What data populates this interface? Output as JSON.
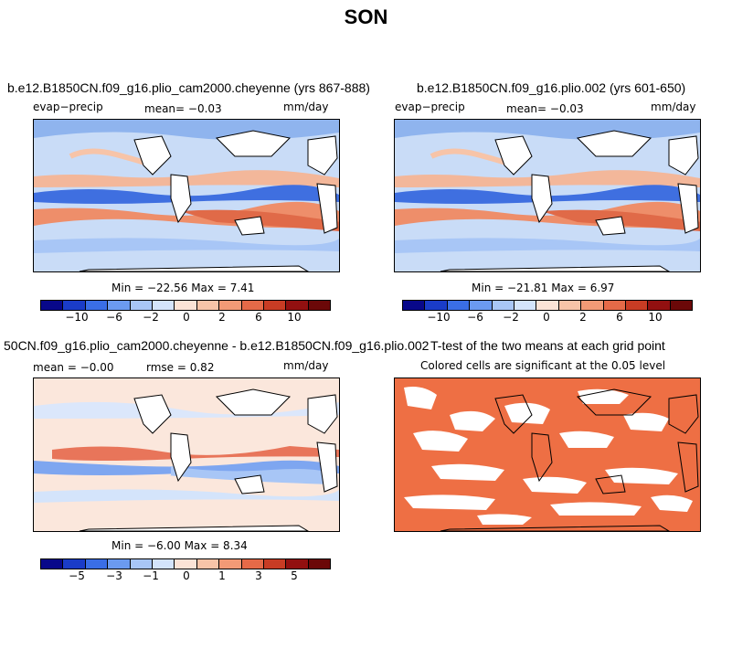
{
  "title": "SON",
  "palette": [
    "#08088a",
    "#1a3cc8",
    "#3a6ee6",
    "#6b9af0",
    "#a8c6f6",
    "#d4e4fb",
    "#fbe3d6",
    "#f7c4a8",
    "#f29a76",
    "#e56a48",
    "#c83c24",
    "#921010",
    "#6b0808"
  ],
  "panels": [
    {
      "title": "b.e12.B1850CN.f09_g16.plio_cam2000.cheyenne (yrs 867-888)",
      "variable": "evap−precip",
      "mean": "mean=  −0.03",
      "units": "mm/day",
      "stats": "Min = −22.56  Max =    7.41",
      "colorbar_ticks": [
        "−10",
        "−6",
        "−2",
        "0",
        "2",
        "6",
        "10"
      ]
    },
    {
      "title": "b.e12.B1850CN.f09_g16.plio.002 (yrs 601-650)",
      "variable": "evap−precip",
      "mean": "mean=  −0.03",
      "units": "mm/day",
      "stats": "Min = −21.81  Max =    6.97",
      "colorbar_ticks": [
        "−10",
        "−6",
        "−2",
        "0",
        "2",
        "6",
        "10"
      ]
    },
    {
      "title": "50CN.f09_g16.plio_cam2000.cheyenne - b.e12.B1850CN.f09_g16.plio.002",
      "variable": "mean =  −0.00",
      "mean": "rmse =   0.82",
      "units": "mm/day",
      "stats": "Min =  −6.00  Max =   8.34",
      "colorbar_ticks": [
        "−5",
        "−3",
        "−1",
        "0",
        "1",
        "3",
        "5"
      ]
    },
    {
      "title": "T-test of the two means at each grid point",
      "subtitle": "Colored cells are significant at the 0.05 level"
    }
  ]
}
